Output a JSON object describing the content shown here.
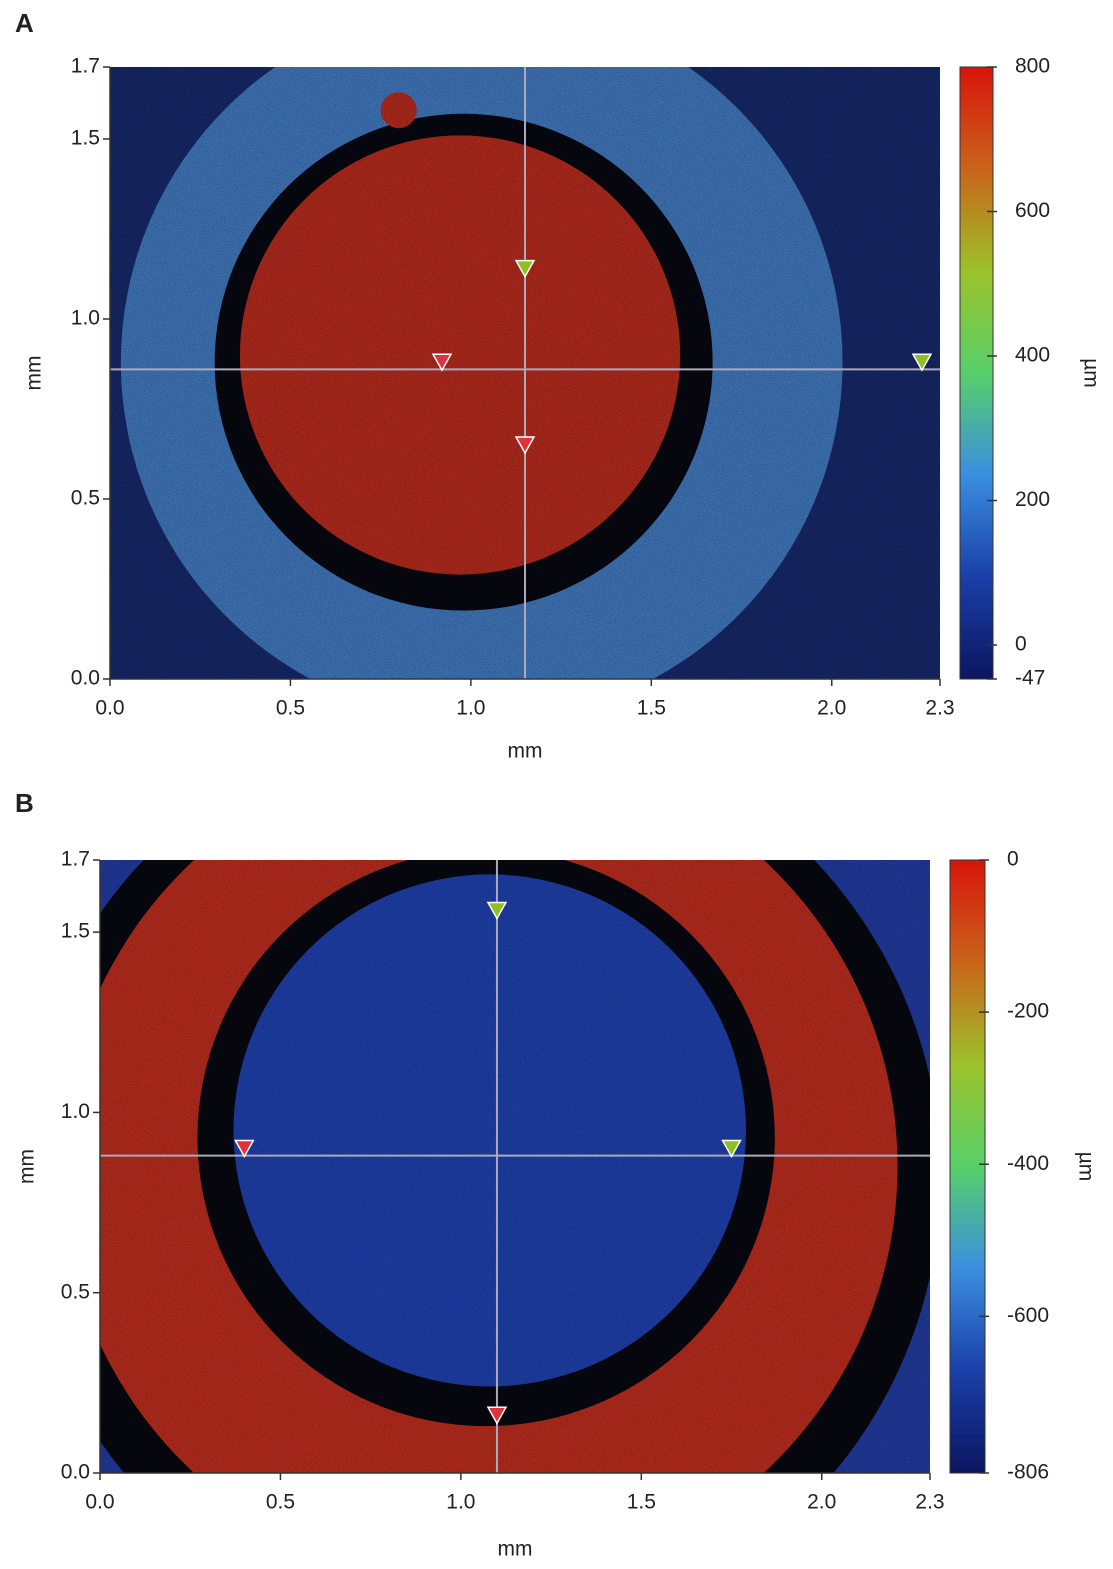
{
  "chart_data": [
    {
      "type": "heatmap",
      "panel": "A",
      "xlabel": "mm",
      "ylabel": "mm",
      "xlim": [
        0,
        2.3
      ],
      "xticks": [
        {
          "value": 0,
          "label": "0.0"
        },
        0.5,
        {
          "value": 1,
          "label": "1.0"
        },
        1.5,
        {
          "value": 2,
          "label": "2.0"
        },
        2.3
      ],
      "ylim": [
        0,
        1.7
      ],
      "yticks": [
        {
          "value": 0,
          "label": "0.0"
        },
        0.5,
        {
          "value": 1,
          "label": "1.0"
        },
        1.5,
        1.7
      ],
      "colorbar_label": "µm",
      "clim": [
        -47,
        800
      ],
      "cticks": [
        -47,
        0,
        200,
        400,
        600,
        800
      ],
      "colormap": [
        "#0b1660",
        "#1a3fa8",
        "#3b8ee0",
        "#57d06a",
        "#9cc22a",
        "#c9641a",
        "#d8140c"
      ],
      "cursor": {
        "x": 1.15,
        "y": 0.86
      },
      "markers": [
        {
          "x": 0.92,
          "y": 0.88,
          "color": "#e0323a"
        },
        {
          "x": 1.15,
          "y": 0.65,
          "color": "#e0323a"
        },
        {
          "x": 1.15,
          "y": 1.14,
          "color": "#8fbf22"
        },
        {
          "x": 2.25,
          "y": 0.88,
          "color": "#8fbf22"
        }
      ]
    },
    {
      "type": "heatmap",
      "panel": "B",
      "xlabel": "mm",
      "ylabel": "mm",
      "xlim": [
        0,
        2.3
      ],
      "xticks": [
        {
          "value": 0,
          "label": "0.0"
        },
        0.5,
        {
          "value": 1,
          "label": "1.0"
        },
        1.5,
        {
          "value": 2,
          "label": "2.0"
        },
        2.3
      ],
      "ylim": [
        0,
        1.7
      ],
      "yticks": [
        {
          "value": 0,
          "label": "0.0"
        },
        0.5,
        {
          "value": 1,
          "label": "1.0"
        },
        1.5,
        1.7
      ],
      "colorbar_label": "µm",
      "clim": [
        -806,
        0
      ],
      "cticks": [
        -806,
        -600,
        -400,
        -200,
        0
      ],
      "colormap": [
        "#0b1660",
        "#1a3fa8",
        "#3b8ee0",
        "#57d06a",
        "#9cc22a",
        "#c9641a",
        "#d8140c"
      ],
      "cursor": {
        "x": 1.1,
        "y": 0.88
      },
      "markers": [
        {
          "x": 0.4,
          "y": 0.9,
          "color": "#e0323a"
        },
        {
          "x": 1.1,
          "y": 0.16,
          "color": "#e0323a"
        },
        {
          "x": 1.1,
          "y": 1.56,
          "color": "#8fbf22"
        },
        {
          "x": 1.75,
          "y": 0.9,
          "color": "#8fbf22"
        }
      ]
    }
  ]
}
